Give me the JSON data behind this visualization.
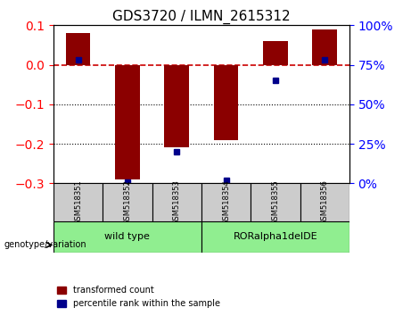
{
  "title": "GDS3720 / ILMN_2615312",
  "samples": [
    "GSM518351",
    "GSM518352",
    "GSM518353",
    "GSM518354",
    "GSM518355",
    "GSM518356"
  ],
  "transformed_count": [
    0.08,
    -0.29,
    -0.21,
    -0.19,
    0.06,
    0.09
  ],
  "percentile_rank": [
    78,
    1,
    20,
    2,
    65,
    78
  ],
  "groups": [
    {
      "label": "wild type",
      "indices": [
        0,
        1,
        2
      ],
      "color": "#90EE90"
    },
    {
      "label": "RORalpha1delDE",
      "indices": [
        3,
        4,
        5
      ],
      "color": "#90EE90"
    }
  ],
  "group_colors": [
    "#90EE90",
    "#90EE90"
  ],
  "ylim_left": [
    -0.3,
    0.1
  ],
  "ylim_right": [
    0,
    100
  ],
  "yticks_left": [
    -0.3,
    -0.2,
    -0.1,
    0.0,
    0.1
  ],
  "yticks_right": [
    0,
    25,
    50,
    75,
    100
  ],
  "bar_color": "#8B0000",
  "dot_color": "#00008B",
  "zero_line_color": "#CC0000",
  "grid_color": "black",
  "bg_color": "white",
  "sample_box_color": "#CCCCCC",
  "legend_red_label": "transformed count",
  "legend_blue_label": "percentile rank within the sample",
  "genotype_label": "genotype/variation"
}
